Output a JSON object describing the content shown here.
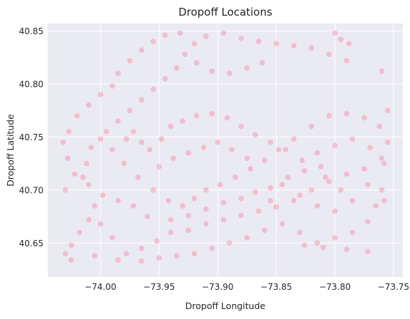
{
  "chart_data": {
    "type": "scatter",
    "title": "Dropoff Locations",
    "xlabel": "Dropoff Longitude",
    "ylabel": "Dropoff Latitude",
    "xlim": [
      -74.045,
      -73.742
    ],
    "ylim": [
      40.618,
      40.857
    ],
    "xticks": [
      -74.0,
      -73.95,
      -73.9,
      -73.85,
      -73.8,
      -73.75
    ],
    "xtick_labels": [
      "−74.00",
      "−73.95",
      "−73.90",
      "−73.85",
      "−73.80",
      "−73.75"
    ],
    "yticks": [
      40.65,
      40.7,
      40.75,
      40.8,
      40.85
    ],
    "ytick_labels": [
      "40.65",
      "40.70",
      "40.75",
      "40.80",
      "40.85"
    ],
    "grid": true,
    "colors": {
      "point": "#f77189",
      "background": "#eaeaf2",
      "grid": "#ffffff"
    },
    "series": [
      {
        "points": [
          [
            -74.03,
            40.64
          ],
          [
            -74.025,
            40.648
          ],
          [
            -74.018,
            40.66
          ],
          [
            -74.01,
            40.672
          ],
          [
            -74.0,
            40.668
          ],
          [
            -73.99,
            40.655
          ],
          [
            -73.978,
            40.64
          ],
          [
            -73.965,
            40.645
          ],
          [
            -73.952,
            40.652
          ],
          [
            -73.94,
            40.66
          ],
          [
            -73.925,
            40.662
          ],
          [
            -73.91,
            40.668
          ],
          [
            -73.895,
            40.672
          ],
          [
            -73.88,
            40.676
          ],
          [
            -73.865,
            40.68
          ],
          [
            -73.85,
            40.684
          ],
          [
            -73.835,
            40.69
          ],
          [
            -73.82,
            40.7
          ],
          [
            -73.805,
            40.708
          ],
          [
            -73.79,
            40.715
          ],
          [
            -73.775,
            40.72
          ],
          [
            -73.76,
            40.73
          ],
          [
            -73.755,
            40.745
          ],
          [
            -73.762,
            40.76
          ],
          [
            -73.775,
            40.768
          ],
          [
            -73.79,
            40.772
          ],
          [
            -73.805,
            40.77
          ],
          [
            -73.82,
            40.76
          ],
          [
            -73.835,
            40.748
          ],
          [
            -73.848,
            40.738
          ],
          [
            -73.86,
            40.728
          ],
          [
            -73.872,
            40.72
          ],
          [
            -73.885,
            40.712
          ],
          [
            -73.898,
            40.705
          ],
          [
            -73.91,
            40.7
          ],
          [
            -73.92,
            40.692
          ],
          [
            -73.93,
            40.685
          ],
          [
            -73.942,
            40.69
          ],
          [
            -73.955,
            40.7
          ],
          [
            -73.968,
            40.712
          ],
          [
            -73.98,
            40.725
          ],
          [
            -73.99,
            40.738
          ],
          [
            -74.0,
            40.748
          ],
          [
            -74.008,
            40.74
          ],
          [
            -74.012,
            40.725
          ],
          [
            -74.015,
            40.712
          ],
          [
            -74.01,
            40.705
          ],
          [
            -73.995,
            40.755
          ],
          [
            -73.985,
            40.765
          ],
          [
            -73.975,
            40.775
          ],
          [
            -73.965,
            40.785
          ],
          [
            -73.955,
            40.795
          ],
          [
            -73.945,
            40.805
          ],
          [
            -73.935,
            40.815
          ],
          [
            -73.928,
            40.828
          ],
          [
            -73.92,
            40.838
          ],
          [
            -73.91,
            40.845
          ],
          [
            -73.895,
            40.848
          ],
          [
            -73.88,
            40.843
          ],
          [
            -73.865,
            40.84
          ],
          [
            -73.85,
            40.838
          ],
          [
            -73.835,
            40.836
          ],
          [
            -73.82,
            40.834
          ],
          [
            -73.805,
            40.828
          ],
          [
            -73.79,
            40.822
          ],
          [
            -73.862,
            40.82
          ],
          [
            -73.875,
            40.815
          ],
          [
            -73.89,
            40.81
          ],
          [
            -73.905,
            40.812
          ],
          [
            -73.918,
            40.82
          ],
          [
            -73.94,
            40.76
          ],
          [
            -73.93,
            40.765
          ],
          [
            -73.918,
            40.77
          ],
          [
            -73.905,
            40.772
          ],
          [
            -73.892,
            40.768
          ],
          [
            -73.88,
            40.76
          ],
          [
            -73.868,
            40.752
          ],
          [
            -73.855,
            40.745
          ],
          [
            -73.842,
            40.738
          ],
          [
            -73.828,
            40.728
          ],
          [
            -73.815,
            40.735
          ],
          [
            -73.8,
            40.742
          ],
          [
            -73.785,
            40.748
          ],
          [
            -73.77,
            40.74
          ],
          [
            -73.758,
            40.725
          ],
          [
            -73.76,
            40.7
          ],
          [
            -73.765,
            40.685
          ],
          [
            -73.772,
            40.67
          ],
          [
            -73.785,
            40.66
          ],
          [
            -73.8,
            40.655
          ],
          [
            -73.815,
            40.65
          ],
          [
            -73.83,
            40.66
          ],
          [
            -73.845,
            40.668
          ],
          [
            -73.86,
            40.662
          ],
          [
            -73.875,
            40.655
          ],
          [
            -73.89,
            40.65
          ],
          [
            -73.905,
            40.645
          ],
          [
            -73.92,
            40.64
          ],
          [
            -73.935,
            40.638
          ],
          [
            -73.95,
            40.636
          ],
          [
            -73.965,
            40.633
          ],
          [
            -73.985,
            40.634
          ],
          [
            -74.005,
            40.638
          ],
          [
            -74.025,
            40.634
          ],
          [
            -74.03,
            40.7
          ],
          [
            -74.022,
            40.715
          ],
          [
            -74.028,
            40.73
          ],
          [
            -74.032,
            40.745
          ],
          [
            -74.027,
            40.755
          ],
          [
            -74.02,
            40.77
          ],
          [
            -74.01,
            40.78
          ],
          [
            -74.0,
            40.79
          ],
          [
            -73.99,
            40.798
          ],
          [
            -73.985,
            40.81
          ],
          [
            -73.975,
            40.822
          ],
          [
            -73.965,
            40.832
          ],
          [
            -73.955,
            40.84
          ],
          [
            -73.945,
            40.846
          ],
          [
            -73.932,
            40.848
          ],
          [
            -73.8,
            40.848
          ],
          [
            -73.795,
            40.842
          ],
          [
            -73.788,
            40.838
          ],
          [
            -73.76,
            40.812
          ],
          [
            -73.755,
            40.775
          ],
          [
            -73.758,
            40.69
          ],
          [
            -73.772,
            40.642
          ],
          [
            -73.79,
            40.644
          ],
          [
            -73.81,
            40.646
          ],
          [
            -73.826,
            40.648
          ],
          [
            -73.855,
            40.69
          ],
          [
            -73.84,
            40.712
          ],
          [
            -73.826,
            40.718
          ],
          [
            -73.812,
            40.722
          ],
          [
            -73.95,
            40.722
          ],
          [
            -73.938,
            40.73
          ],
          [
            -73.925,
            40.735
          ],
          [
            -73.912,
            40.74
          ],
          [
            -73.9,
            40.745
          ],
          [
            -73.888,
            40.738
          ],
          [
            -73.875,
            40.73
          ],
          [
            -73.965,
            40.745
          ],
          [
            -73.958,
            40.738
          ],
          [
            -73.948,
            40.748
          ],
          [
            -73.972,
            40.755
          ],
          [
            -73.978,
            40.748
          ],
          [
            -73.96,
            40.675
          ],
          [
            -73.972,
            40.685
          ],
          [
            -73.985,
            40.69
          ],
          [
            -73.998,
            40.695
          ],
          [
            -74.005,
            40.685
          ],
          [
            -73.94,
            40.672
          ],
          [
            -73.925,
            40.676
          ],
          [
            -73.91,
            40.682
          ],
          [
            -73.895,
            40.688
          ],
          [
            -73.88,
            40.692
          ],
          [
            -73.868,
            40.698
          ],
          [
            -73.855,
            40.702
          ],
          [
            -73.845,
            40.705
          ],
          [
            -73.83,
            40.695
          ],
          [
            -73.815,
            40.685
          ],
          [
            -73.8,
            40.68
          ],
          [
            -73.785,
            40.69
          ],
          [
            -73.772,
            40.705
          ],
          [
            -73.795,
            40.7
          ],
          [
            -73.808,
            40.712
          ]
        ]
      }
    ]
  }
}
